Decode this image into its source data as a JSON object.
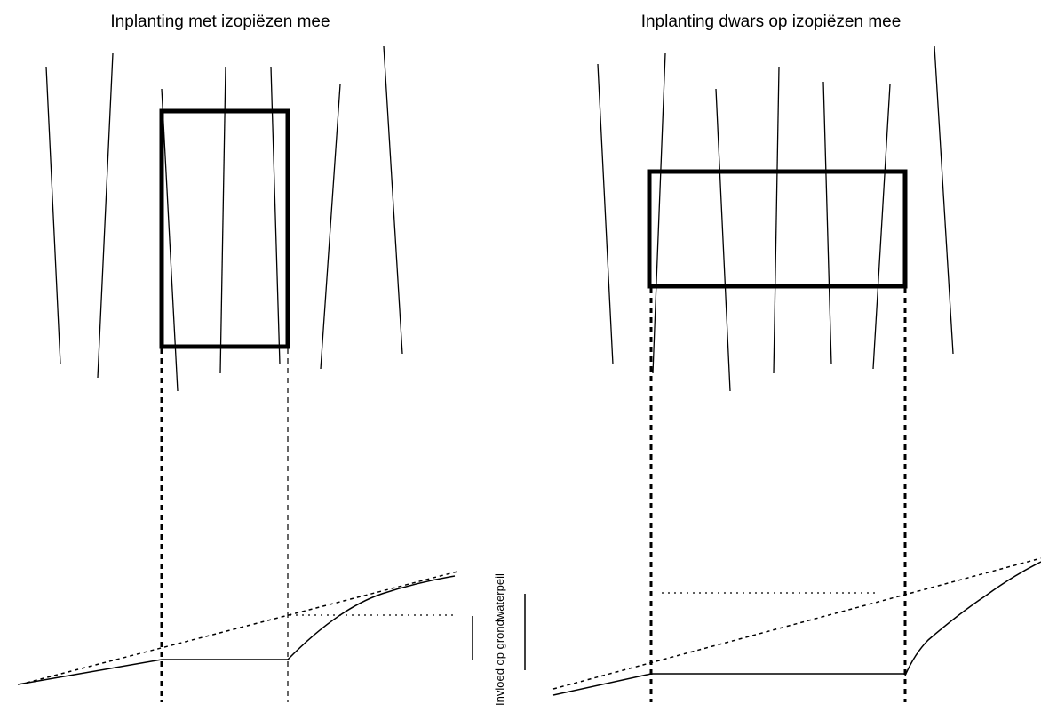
{
  "left_panel": {
    "title": "Inplanting met izopiëzen mee"
  },
  "right_panel": {
    "title": "Inplanting dwars op izopiëzen mee"
  },
  "vertical_label": "Invloed op grondwaterpeil",
  "colors": {
    "line": "#000000",
    "background": "#ffffff"
  }
}
